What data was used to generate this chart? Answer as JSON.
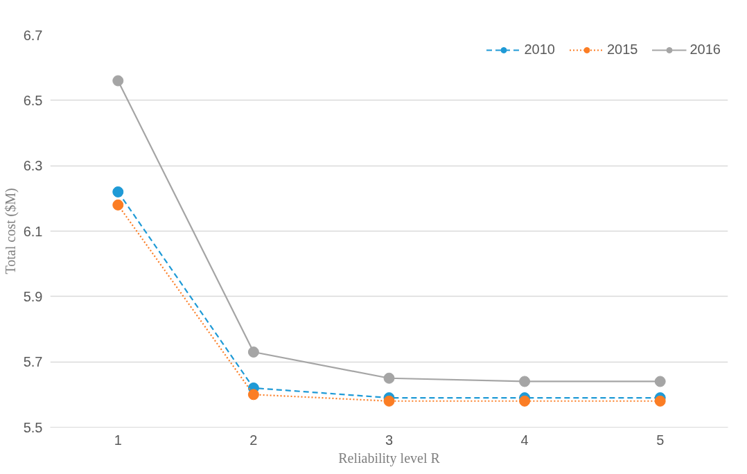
{
  "chart_data": {
    "type": "line",
    "xlabel": "Reliability level R",
    "ylabel": "Total cost ($M)",
    "categories": [
      "1",
      "2",
      "3",
      "4",
      "5"
    ],
    "series": [
      {
        "name": "2010",
        "color": "#1f9ad6",
        "line_style": "dashed",
        "values": [
          6.22,
          5.62,
          5.59,
          5.59,
          5.59
        ]
      },
      {
        "name": "2015",
        "color": "#fb7d24",
        "line_style": "dotted",
        "values": [
          6.18,
          5.6,
          5.58,
          5.58,
          5.58
        ]
      },
      {
        "name": "2016",
        "color": "#a5a5a5",
        "line_style": "solid",
        "values": [
          6.56,
          5.73,
          5.65,
          5.64,
          5.64
        ]
      }
    ],
    "marker": "circle",
    "ylim": [
      5.5,
      6.7
    ],
    "yticks": [
      5.5,
      5.7,
      5.9,
      6.1,
      6.3,
      6.5,
      6.7
    ],
    "grid": "y",
    "legend": "top right"
  }
}
